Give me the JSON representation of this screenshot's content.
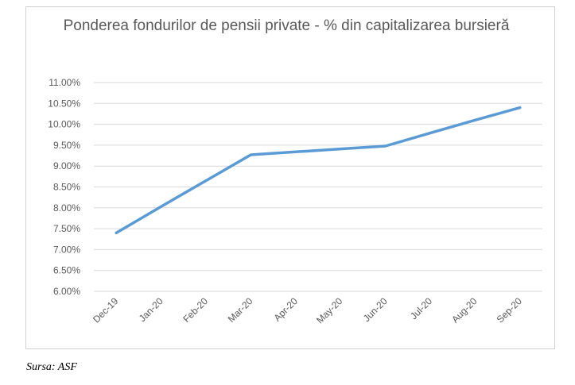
{
  "chart_data": {
    "type": "line",
    "title": "Ponderea fondurilor de pensii private - % din capitalizarea bursieră",
    "xlabel": "",
    "ylabel": "",
    "categories": [
      "Dec-19",
      "Jan-20",
      "Feb-20",
      "Mar-20",
      "Apr-20",
      "May-20",
      "Jun-20",
      "Jul-20",
      "Aug-20",
      "Sep-20"
    ],
    "series": [
      {
        "values": [
          7.4,
          8.03,
          8.65,
          9.27,
          9.34,
          9.41,
          9.48,
          9.79,
          10.1,
          10.4
        ],
        "color": "#5b9bd5"
      }
    ],
    "ylim": [
      6.0,
      11.0
    ],
    "ytick_step": 0.5,
    "ytick_labels": [
      "6.00%",
      "6.50%",
      "7.00%",
      "7.50%",
      "8.00%",
      "8.50%",
      "9.00%",
      "9.50%",
      "10.00%",
      "10.50%",
      "11.00%"
    ],
    "grid": true,
    "legend": "none"
  },
  "source": "Sursa: ASF",
  "colors": {
    "line": "#5b9bd5",
    "grid": "#d9d9d9",
    "text": "#595959"
  }
}
